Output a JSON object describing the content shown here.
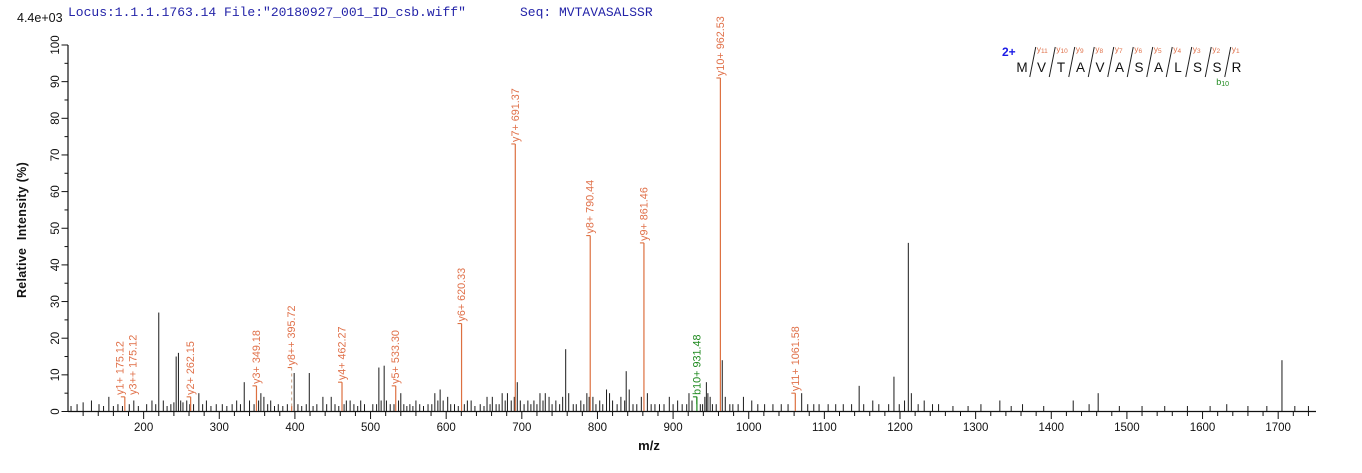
{
  "header": {
    "locus_file": "Locus:1.1.1.1763.14 File:\"20180927_001_ID_csb.wiff\"",
    "seq": "Seq: MVTAVASALSSR"
  },
  "axes": {
    "y_label": "Relative  Intensity (%)",
    "x_label": "m/z",
    "max_intensity": "4.4e+03"
  },
  "colors": {
    "annotation_orange": "#e0714a",
    "annotation_orange_line": "#dd7040",
    "dashed_leader": "#c9a083",
    "b_ion_green": "#1f8a1f",
    "charge_blue": "#1a1ae6",
    "header_navy": "#2323a8",
    "peak_black": "#1a1a1a"
  },
  "peptide": {
    "charge": "2+",
    "residues": [
      "M",
      "V",
      "T",
      "A",
      "V",
      "A",
      "S",
      "A",
      "L",
      "S",
      "S",
      "R"
    ],
    "y_ion_labels": [
      "y11",
      "y10",
      "y9",
      "y8",
      "y7",
      "y6",
      "y5",
      "y4",
      "y3",
      "y2",
      "y1"
    ],
    "b_ion": {
      "label": "b10",
      "boundary_after_residue": 10
    }
  },
  "chart_data": {
    "type": "bar",
    "subtype": "ms2-mass-spectrum",
    "title": "",
    "xlabel": "m/z",
    "ylabel": "Relative  Intensity (%)",
    "x_range": [
      100,
      1750
    ],
    "y_range": [
      0,
      100
    ],
    "x_ticks": [
      200,
      300,
      400,
      500,
      600,
      700,
      800,
      900,
      1000,
      1100,
      1200,
      1300,
      1400,
      1500,
      1600,
      1700
    ],
    "x_minor_step": 20,
    "y_ticks": [
      0,
      10,
      20,
      30,
      40,
      50,
      60,
      70,
      80,
      90,
      100
    ],
    "y_minor_step": 5,
    "grid": false,
    "annotated_ions": [
      {
        "id": "y1",
        "label": "y1+ 175.12",
        "mz": 175.12,
        "intensity": 3.5,
        "series": "y",
        "line": "solid",
        "label_dx": -5,
        "label_h": 4
      },
      {
        "id": "y3pp",
        "label": "y3++ 175.12",
        "mz": 175.12,
        "intensity": 3.5,
        "series": "y",
        "line": "none",
        "label_dx": 8,
        "label_h": 4
      },
      {
        "id": "y2",
        "label": "y2+ 262.15",
        "mz": 262.15,
        "intensity": 4,
        "series": "y",
        "line": "solid"
      },
      {
        "id": "y3",
        "label": "y3+ 349.18",
        "mz": 349.18,
        "intensity": 7,
        "series": "y",
        "line": "solid"
      },
      {
        "id": "y8pp",
        "label": "y8++ 395.72",
        "mz": 395.72,
        "intensity": 1.5,
        "series": "y",
        "line": "dashed",
        "label_h": 12
      },
      {
        "id": "y4",
        "label": "y4+ 462.27",
        "mz": 462.27,
        "intensity": 8,
        "series": "y",
        "line": "solid"
      },
      {
        "id": "y5",
        "label": "y5+ 533.30",
        "mz": 533.3,
        "intensity": 7,
        "series": "y",
        "line": "solid"
      },
      {
        "id": "y6",
        "label": "y6+ 620.33",
        "mz": 620.33,
        "intensity": 24,
        "series": "y",
        "line": "solid"
      },
      {
        "id": "y7",
        "label": "y7+ 691.37",
        "mz": 691.37,
        "intensity": 73,
        "series": "y",
        "line": "solid"
      },
      {
        "id": "y8",
        "label": "y8+ 790.44",
        "mz": 790.44,
        "intensity": 48,
        "series": "y",
        "line": "solid"
      },
      {
        "id": "y9",
        "label": "y9+ 861.46",
        "mz": 861.46,
        "intensity": 46,
        "series": "y",
        "line": "solid"
      },
      {
        "id": "b10",
        "label": "b10+ 931.48",
        "mz": 931.48,
        "intensity": 2,
        "series": "b",
        "line": "solid",
        "label_h": 4
      },
      {
        "id": "y10",
        "label": "y10+ 962.53",
        "mz": 962.53,
        "intensity": 91,
        "series": "y",
        "line": "solid"
      },
      {
        "id": "y11",
        "label": "y11+ 1061.58",
        "mz": 1061.58,
        "intensity": 5,
        "series": "y",
        "line": "solid"
      }
    ],
    "peaks": [
      [
        104,
        1.5
      ],
      [
        112,
        2
      ],
      [
        120,
        2.5
      ],
      [
        131,
        3
      ],
      [
        141,
        2
      ],
      [
        147,
        1.5
      ],
      [
        154,
        4
      ],
      [
        160,
        1.5
      ],
      [
        166,
        2
      ],
      [
        172,
        1.5
      ],
      [
        181,
        2
      ],
      [
        187,
        3
      ],
      [
        193,
        1.5
      ],
      [
        204,
        2
      ],
      [
        211,
        3
      ],
      [
        216,
        2
      ],
      [
        220,
        27
      ],
      [
        226,
        3
      ],
      [
        231,
        1.5
      ],
      [
        236,
        2
      ],
      [
        240,
        2.5
      ],
      [
        243,
        15
      ],
      [
        246,
        16
      ],
      [
        249,
        3
      ],
      [
        252,
        2.5
      ],
      [
        257,
        3
      ],
      [
        261,
        2
      ],
      [
        266,
        2
      ],
      [
        273,
        5
      ],
      [
        278,
        2
      ],
      [
        283,
        3
      ],
      [
        289,
        1.5
      ],
      [
        296,
        2
      ],
      [
        304,
        2
      ],
      [
        310,
        1.5
      ],
      [
        317,
        2
      ],
      [
        323,
        3
      ],
      [
        328,
        2
      ],
      [
        333,
        8
      ],
      [
        340,
        3
      ],
      [
        346,
        2
      ],
      [
        352,
        3
      ],
      [
        355,
        5
      ],
      [
        359,
        4
      ],
      [
        364,
        2
      ],
      [
        368,
        3
      ],
      [
        373,
        1.5
      ],
      [
        378,
        2
      ],
      [
        384,
        1.5
      ],
      [
        390,
        2
      ],
      [
        399,
        10.5
      ],
      [
        404,
        2
      ],
      [
        409,
        1.5
      ],
      [
        415,
        2
      ],
      [
        419,
        10.5
      ],
      [
        424,
        1.5
      ],
      [
        429,
        2
      ],
      [
        437,
        4
      ],
      [
        442,
        2
      ],
      [
        448,
        4
      ],
      [
        453,
        2
      ],
      [
        458,
        1.5
      ],
      [
        465,
        2
      ],
      [
        468,
        3
      ],
      [
        473,
        3
      ],
      [
        478,
        2
      ],
      [
        483,
        1.5
      ],
      [
        487,
        3
      ],
      [
        492,
        2
      ],
      [
        503,
        2
      ],
      [
        508,
        2
      ],
      [
        511,
        12
      ],
      [
        514,
        3
      ],
      [
        518,
        12.5
      ],
      [
        521,
        3
      ],
      [
        526,
        2
      ],
      [
        531,
        2
      ],
      [
        537,
        3
      ],
      [
        540,
        5
      ],
      [
        544,
        2
      ],
      [
        548,
        1.5
      ],
      [
        552,
        2
      ],
      [
        556,
        1.5
      ],
      [
        560,
        3
      ],
      [
        565,
        2
      ],
      [
        570,
        1.5
      ],
      [
        576,
        2
      ],
      [
        581,
        2
      ],
      [
        585,
        5
      ],
      [
        589,
        3
      ],
      [
        592,
        6
      ],
      [
        596,
        3
      ],
      [
        602,
        4
      ],
      [
        606,
        2
      ],
      [
        611,
        2
      ],
      [
        616,
        1.5
      ],
      [
        624,
        2
      ],
      [
        628,
        3
      ],
      [
        633,
        3
      ],
      [
        638,
        1.5
      ],
      [
        645,
        2
      ],
      [
        650,
        1.5
      ],
      [
        654,
        4
      ],
      [
        658,
        2
      ],
      [
        661,
        4
      ],
      [
        666,
        2
      ],
      [
        670,
        2
      ],
      [
        674,
        5
      ],
      [
        678,
        3
      ],
      [
        681,
        5
      ],
      [
        686,
        3
      ],
      [
        690,
        4
      ],
      [
        694,
        8
      ],
      [
        698,
        3
      ],
      [
        703,
        2
      ],
      [
        708,
        3
      ],
      [
        712,
        2
      ],
      [
        716,
        3
      ],
      [
        720,
        2
      ],
      [
        724,
        5
      ],
      [
        728,
        3
      ],
      [
        731,
        5
      ],
      [
        736,
        4
      ],
      [
        740,
        2
      ],
      [
        745,
        3
      ],
      [
        750,
        2
      ],
      [
        754,
        4
      ],
      [
        758,
        17
      ],
      [
        762,
        5
      ],
      [
        768,
        2
      ],
      [
        772,
        2
      ],
      [
        778,
        3
      ],
      [
        782,
        2
      ],
      [
        786,
        5
      ],
      [
        789,
        4
      ],
      [
        794,
        4
      ],
      [
        798,
        2
      ],
      [
        803,
        3
      ],
      [
        807,
        2
      ],
      [
        812,
        6
      ],
      [
        816,
        5
      ],
      [
        820,
        3
      ],
      [
        826,
        2
      ],
      [
        831,
        4
      ],
      [
        836,
        3
      ],
      [
        838,
        11
      ],
      [
        842,
        6
      ],
      [
        847,
        2
      ],
      [
        852,
        2
      ],
      [
        858,
        4
      ],
      [
        866,
        5
      ],
      [
        871,
        2
      ],
      [
        876,
        2
      ],
      [
        882,
        2
      ],
      [
        888,
        2
      ],
      [
        895,
        4
      ],
      [
        900,
        2
      ],
      [
        906,
        3
      ],
      [
        912,
        2
      ],
      [
        918,
        2
      ],
      [
        921,
        5
      ],
      [
        925,
        3
      ],
      [
        936,
        2
      ],
      [
        939,
        2
      ],
      [
        942,
        4
      ],
      [
        944,
        8
      ],
      [
        946,
        5
      ],
      [
        949,
        4
      ],
      [
        952,
        2
      ],
      [
        957,
        2
      ],
      [
        965,
        14
      ],
      [
        969,
        4
      ],
      [
        975,
        2
      ],
      [
        979,
        2
      ],
      [
        986,
        2
      ],
      [
        993,
        4
      ],
      [
        1004,
        3
      ],
      [
        1012,
        2
      ],
      [
        1021,
        2
      ],
      [
        1032,
        2
      ],
      [
        1043,
        2
      ],
      [
        1052,
        2
      ],
      [
        1070,
        5
      ],
      [
        1078,
        2
      ],
      [
        1086,
        2
      ],
      [
        1093,
        2
      ],
      [
        1105,
        2
      ],
      [
        1115,
        2
      ],
      [
        1125,
        2
      ],
      [
        1136,
        2
      ],
      [
        1146,
        7
      ],
      [
        1152,
        2
      ],
      [
        1164,
        3
      ],
      [
        1172,
        2
      ],
      [
        1185,
        2
      ],
      [
        1192,
        9.5
      ],
      [
        1199,
        2
      ],
      [
        1206,
        3
      ],
      [
        1211,
        46
      ],
      [
        1215,
        5
      ],
      [
        1224,
        2
      ],
      [
        1232,
        3
      ],
      [
        1243,
        2
      ],
      [
        1251,
        2
      ],
      [
        1270,
        1.5
      ],
      [
        1290,
        1.5
      ],
      [
        1307,
        2
      ],
      [
        1332,
        3
      ],
      [
        1347,
        1.5
      ],
      [
        1362,
        2
      ],
      [
        1390,
        1.5
      ],
      [
        1429,
        3
      ],
      [
        1450,
        2
      ],
      [
        1462,
        5
      ],
      [
        1490,
        1.5
      ],
      [
        1520,
        1.5
      ],
      [
        1550,
        1.5
      ],
      [
        1580,
        1.5
      ],
      [
        1610,
        1.5
      ],
      [
        1632,
        2
      ],
      [
        1660,
        1.5
      ],
      [
        1685,
        1.5
      ],
      [
        1705,
        14
      ],
      [
        1722,
        1.5
      ],
      [
        1740,
        1.5
      ]
    ],
    "legend": null
  }
}
